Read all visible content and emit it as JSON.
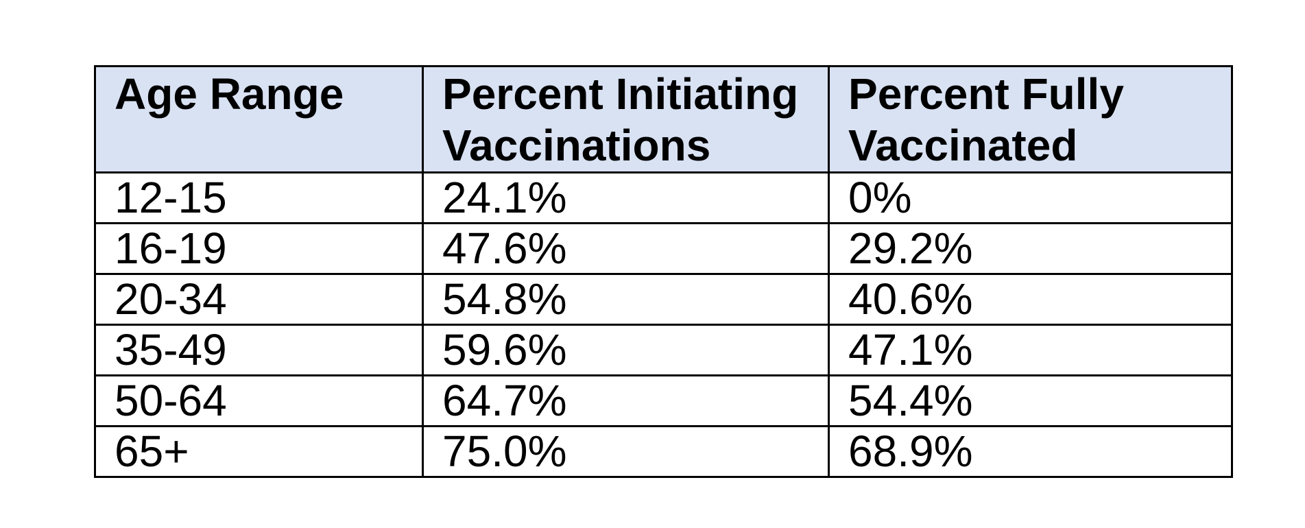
{
  "page": {
    "background": "#ffffff"
  },
  "table": {
    "header_bg": "#d9e2f3",
    "border_color": "#000000",
    "text_color": "#000000",
    "columns": [
      "Age Range",
      "Percent Initiating Vaccinations",
      "Percent Fully Vaccinated"
    ],
    "rows": [
      [
        "12-15",
        "24.1%",
        "0%"
      ],
      [
        "16-19",
        "47.6%",
        "29.2%"
      ],
      [
        "20-34",
        "54.8%",
        "40.6%"
      ],
      [
        "35-49",
        "59.6%",
        "47.1%"
      ],
      [
        "50-64",
        "64.7%",
        "54.4%"
      ],
      [
        "65+",
        "75.0%",
        "68.9%"
      ]
    ]
  },
  "chart_data": {
    "type": "table",
    "categories": [
      "12-15",
      "16-19",
      "20-34",
      "35-49",
      "50-64",
      "65+"
    ],
    "series": [
      {
        "name": "Percent Initiating Vaccinations",
        "values": [
          24.1,
          47.6,
          54.8,
          59.6,
          64.7,
          75.0
        ]
      },
      {
        "name": "Percent Fully Vaccinated",
        "values": [
          0,
          29.2,
          40.6,
          47.1,
          54.4,
          68.9
        ]
      }
    ],
    "xlabel": "Age Range",
    "value_unit": "%"
  }
}
